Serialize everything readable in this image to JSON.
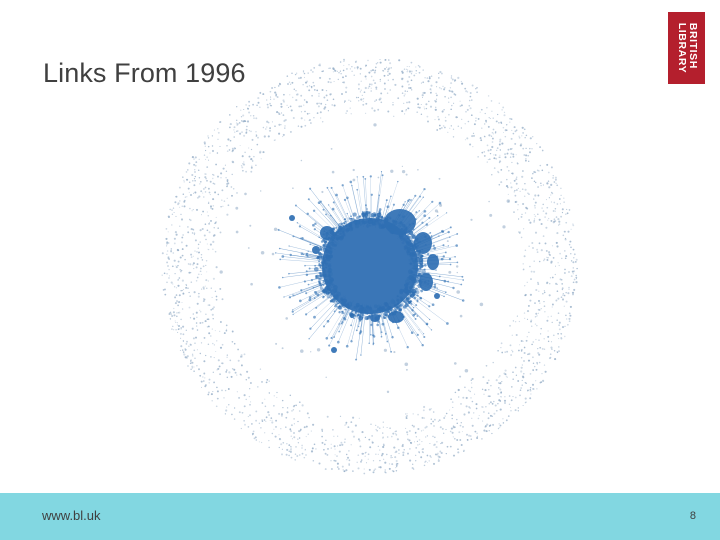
{
  "slide": {
    "title": "Links From 1996",
    "page_number": "8"
  },
  "logo": {
    "line1": "BRITISH",
    "line2": "LIBRARY",
    "color": "#b41f2d"
  },
  "footer": {
    "url": "www.bl.uk",
    "color": "#82d7e1"
  },
  "graph": {
    "node_color": "#2f6fb3",
    "ring_color": "#8fa9c4"
  }
}
